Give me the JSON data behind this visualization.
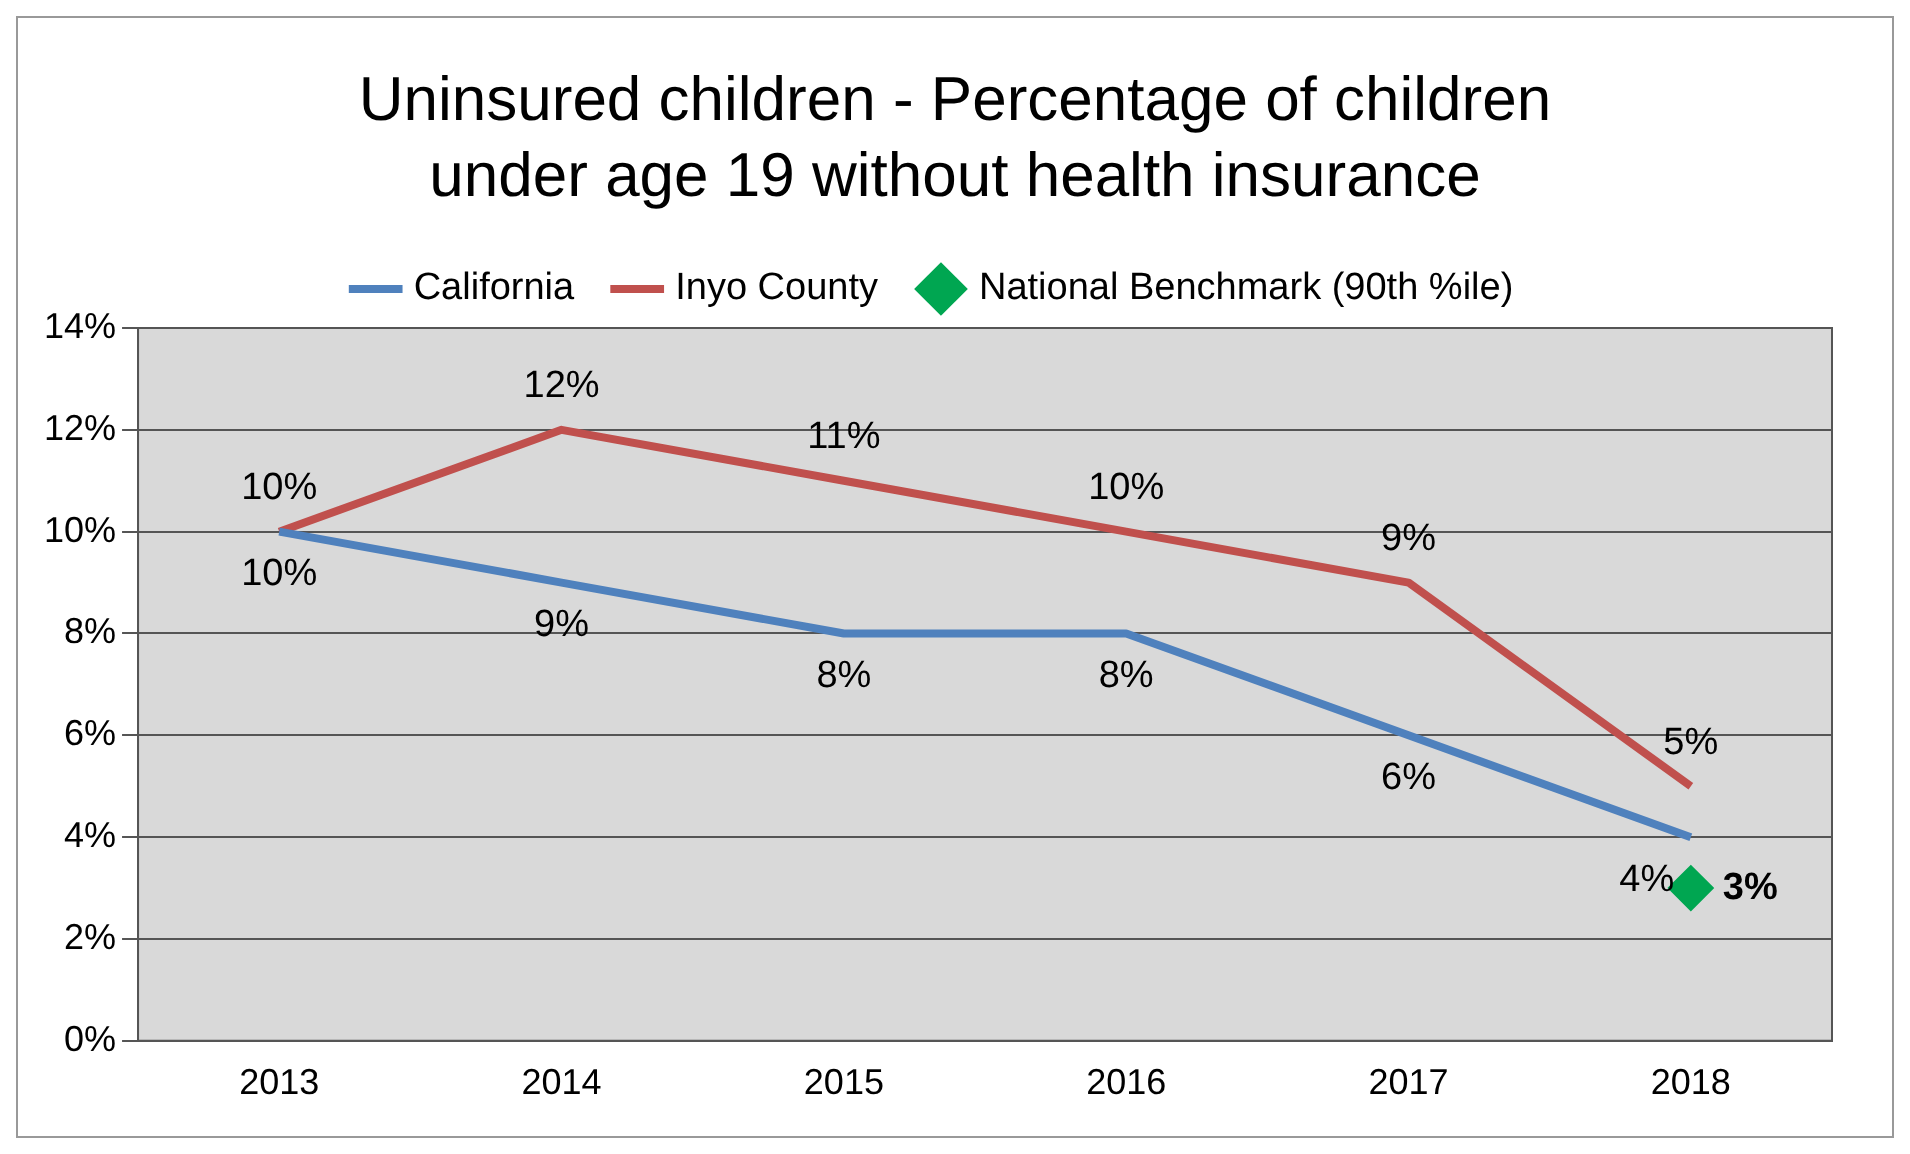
{
  "chart_data": {
    "type": "line",
    "title": "Uninsured children - Percentage of children under age 19 without health insurance",
    "categories": [
      "2013",
      "2014",
      "2015",
      "2016",
      "2017",
      "2018"
    ],
    "series": [
      {
        "name": "California",
        "color": "#4f81bd",
        "values": [
          10,
          9,
          8,
          8,
          6,
          4
        ],
        "value_labels": [
          "10%",
          "9%",
          "8%",
          "8%",
          "6%",
          "4%"
        ]
      },
      {
        "name": "Inyo County",
        "color": "#c0504d",
        "values": [
          10,
          12,
          11,
          10,
          9,
          5
        ],
        "value_labels": [
          "10%",
          "12%",
          "11%",
          "10%",
          "9%",
          "5%"
        ]
      },
      {
        "name": "National Benchmark (90th %ile)",
        "type": "scatter",
        "marker": "diamond",
        "color": "#00a651",
        "values": [
          null,
          null,
          null,
          null,
          null,
          3
        ],
        "value_labels": [
          null,
          null,
          null,
          null,
          null,
          "3%"
        ]
      }
    ],
    "ylim": [
      0,
      14
    ],
    "yticks": [
      {
        "value": 0,
        "label": "0%"
      },
      {
        "value": 2,
        "label": "2%"
      },
      {
        "value": 4,
        "label": "4%"
      },
      {
        "value": 6,
        "label": "6%"
      },
      {
        "value": 8,
        "label": "8%"
      },
      {
        "value": 10,
        "label": "10%"
      },
      {
        "value": 12,
        "label": "12%"
      },
      {
        "value": 14,
        "label": "14%"
      }
    ],
    "grid": "y",
    "legend": "top",
    "marker": "none",
    "line_style": "solid"
  }
}
